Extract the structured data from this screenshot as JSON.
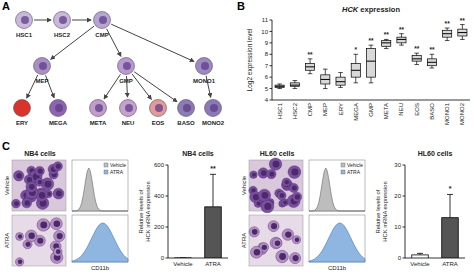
{
  "panels": [
    "A",
    "B",
    "C"
  ],
  "diagram": {
    "nodes": [
      {
        "label": "HSC1"
      },
      {
        "label": "HSC2"
      },
      {
        "label": "CMP"
      },
      {
        "label": "MEP"
      },
      {
        "label": "GMP"
      },
      {
        "label": "MONO1"
      },
      {
        "label": "ERY"
      },
      {
        "label": "MEGA"
      },
      {
        "label": "META"
      },
      {
        "label": "NEU"
      },
      {
        "label": "EOS"
      },
      {
        "label": "BASO"
      },
      {
        "label": "MONO2"
      }
    ]
  },
  "images": [
    {
      "title": "NB4 cells",
      "rows": [
        "Vehicle",
        "ATRA"
      ]
    },
    {
      "title": "HL60 cells",
      "rows": [
        "Vehicle",
        "ATRA"
      ]
    }
  ],
  "flow": [
    {
      "legend": [
        "Vehicle",
        "ATRA"
      ],
      "x_label": "CD11b"
    },
    {
      "legend": [
        "Vehicle",
        "ATRA"
      ],
      "x_label": "CD11b"
    }
  ],
  "chart_data": [
    {
      "type": "box",
      "title": "HCK expression",
      "y_label": "Log2 expression level",
      "categories": [
        "HSC1",
        "HSC2",
        "CMP",
        "MEP",
        "ERY",
        "MEGA",
        "GMP",
        "META",
        "NEU",
        "EOS",
        "BASO",
        "MONO1",
        "MONO2"
      ],
      "boxes": [
        {
          "min": 5.0,
          "q1": 5.1,
          "median": 5.2,
          "q3": 5.3,
          "max": 5.4
        },
        {
          "min": 5.0,
          "q1": 5.2,
          "median": 5.3,
          "q3": 5.5,
          "max": 5.7
        },
        {
          "min": 6.3,
          "q1": 6.6,
          "median": 6.9,
          "q3": 7.2,
          "max": 7.6
        },
        {
          "min": 5.0,
          "q1": 5.4,
          "median": 5.8,
          "q3": 6.2,
          "max": 6.7
        },
        {
          "min": 5.1,
          "q1": 5.3,
          "median": 5.6,
          "q3": 6.0,
          "max": 6.4
        },
        {
          "min": 5.5,
          "q1": 6.0,
          "median": 6.6,
          "q3": 7.2,
          "max": 8.0
        },
        {
          "min": 5.5,
          "q1": 6.0,
          "median": 7.4,
          "q3": 8.5,
          "max": 8.8
        },
        {
          "min": 8.5,
          "q1": 8.7,
          "median": 9.0,
          "q3": 9.2,
          "max": 9.3
        },
        {
          "min": 8.8,
          "q1": 9.0,
          "median": 9.3,
          "q3": 9.5,
          "max": 9.8
        },
        {
          "min": 7.1,
          "q1": 7.4,
          "median": 7.6,
          "q3": 7.9,
          "max": 8.1
        },
        {
          "min": 6.8,
          "q1": 7.0,
          "median": 7.3,
          "q3": 7.6,
          "max": 8.0
        },
        {
          "min": 9.2,
          "q1": 9.5,
          "median": 9.8,
          "q3": 10.1,
          "max": 10.3
        },
        {
          "min": 9.3,
          "q1": 9.6,
          "median": 9.9,
          "q3": 10.2,
          "max": 10.6
        }
      ],
      "annotations": [
        null,
        null,
        "**",
        null,
        null,
        "*",
        "**",
        "**",
        "**",
        "**",
        "**",
        "**",
        "**"
      ],
      "color": "#d9d9d9",
      "ylim": [
        4,
        11
      ],
      "yticks": [
        4,
        5,
        6,
        7,
        8,
        9,
        10,
        11
      ]
    },
    {
      "type": "bar",
      "title": "NB4 cells",
      "y_label": "Relative levels of HCK mRNA expression",
      "categories": [
        "Vehicle",
        "ATRA"
      ],
      "values": [
        1,
        330
      ],
      "errors": [
        0.5,
        210
      ],
      "colors": [
        "#ffffff",
        "#555555"
      ],
      "annotation": "**",
      "ylim": [
        0,
        600
      ],
      "yticks": [
        0,
        200,
        400,
        600
      ]
    },
    {
      "type": "bar",
      "title": "HL60 cells",
      "y_label": "Relative levels of HCK mRNA expression",
      "categories": [
        "Vehicle",
        "ATRA"
      ],
      "values": [
        1,
        13
      ],
      "errors": [
        0.5,
        7.5
      ],
      "colors": [
        "#ffffff",
        "#555555"
      ],
      "annotation": "*",
      "ylim": [
        0,
        30
      ],
      "yticks": [
        0,
        10,
        20,
        30
      ]
    }
  ]
}
